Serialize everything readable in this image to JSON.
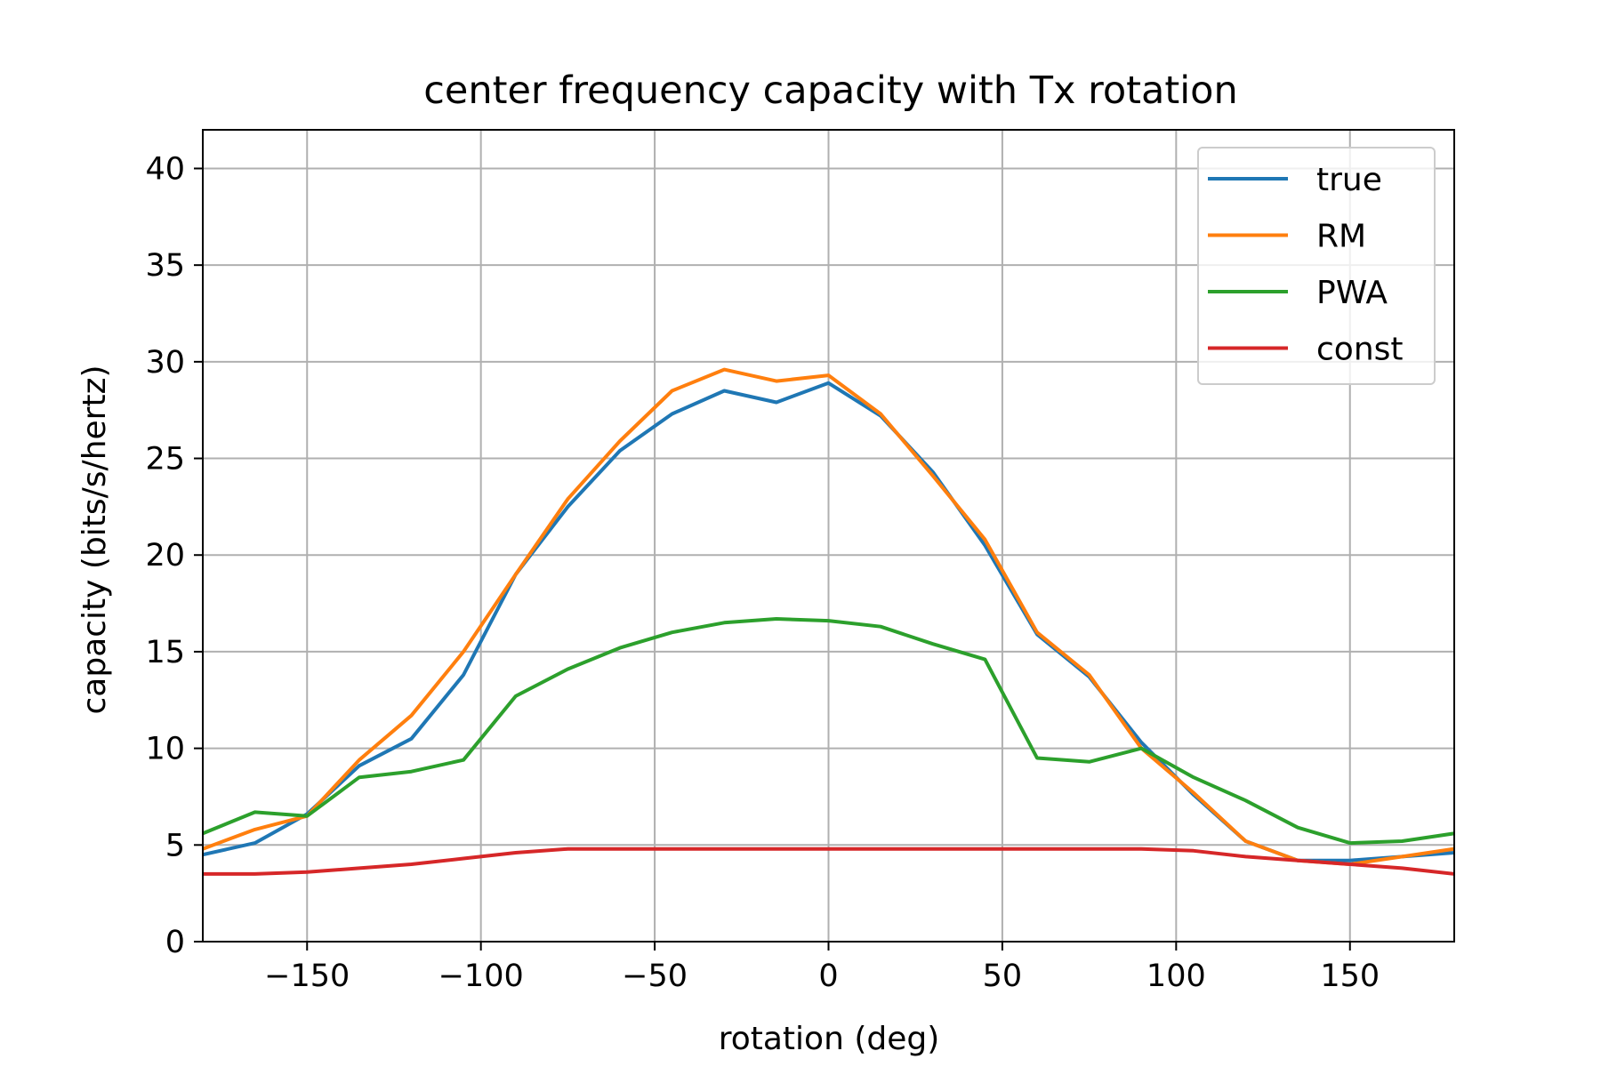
{
  "chart_data": {
    "type": "line",
    "title": "center frequency capacity with Tx rotation",
    "xlabel": "rotation (deg)",
    "ylabel": "capacity (bits/s/hertz)",
    "xlim": [
      -180,
      180
    ],
    "ylim": [
      0,
      42
    ],
    "xticks": [
      -150,
      -100,
      -50,
      0,
      50,
      100,
      150
    ],
    "xtick_labels": [
      "−150",
      "−100",
      "−50",
      "0",
      "50",
      "100",
      "150"
    ],
    "yticks": [
      0,
      5,
      10,
      15,
      20,
      25,
      30,
      35,
      40
    ],
    "ytick_labels": [
      "0",
      "5",
      "10",
      "15",
      "20",
      "25",
      "30",
      "35",
      "40"
    ],
    "grid": true,
    "legend_position": "top-right",
    "x": [
      -180,
      -165,
      -150,
      -135,
      -120,
      -105,
      -90,
      -75,
      -60,
      -45,
      -30,
      -15,
      0,
      15,
      30,
      45,
      60,
      75,
      90,
      105,
      120,
      135,
      150,
      165,
      180
    ],
    "series": [
      {
        "name": "true",
        "color": "#1f77b4",
        "values": [
          4.5,
          5.1,
          6.6,
          9.1,
          10.5,
          13.8,
          19.0,
          22.5,
          25.4,
          27.3,
          28.5,
          27.9,
          28.9,
          27.2,
          24.3,
          20.5,
          15.9,
          13.7,
          10.3,
          7.6,
          5.2,
          4.2,
          4.2,
          4.4,
          4.6
        ]
      },
      {
        "name": "RM",
        "color": "#ff7f0e",
        "values": [
          4.8,
          5.8,
          6.5,
          9.4,
          11.7,
          15.0,
          19.0,
          22.9,
          25.9,
          28.5,
          29.6,
          29.0,
          29.3,
          27.3,
          24.1,
          20.8,
          16.0,
          13.8,
          10.0,
          7.7,
          5.2,
          4.2,
          4.0,
          4.4,
          4.8
        ]
      },
      {
        "name": "PWA",
        "color": "#2ca02c",
        "values": [
          5.6,
          6.7,
          6.5,
          8.5,
          8.8,
          9.4,
          12.7,
          14.1,
          15.2,
          16.0,
          16.5,
          16.7,
          16.6,
          16.3,
          15.4,
          14.6,
          9.5,
          9.3,
          10.0,
          8.5,
          7.3,
          5.9,
          5.1,
          5.2,
          5.6
        ]
      },
      {
        "name": "const",
        "color": "#d62728",
        "values": [
          3.5,
          3.5,
          3.6,
          3.8,
          4.0,
          4.3,
          4.6,
          4.8,
          4.8,
          4.8,
          4.8,
          4.8,
          4.8,
          4.8,
          4.8,
          4.8,
          4.8,
          4.8,
          4.8,
          4.7,
          4.4,
          4.2,
          4.0,
          3.8,
          3.5
        ]
      }
    ]
  }
}
